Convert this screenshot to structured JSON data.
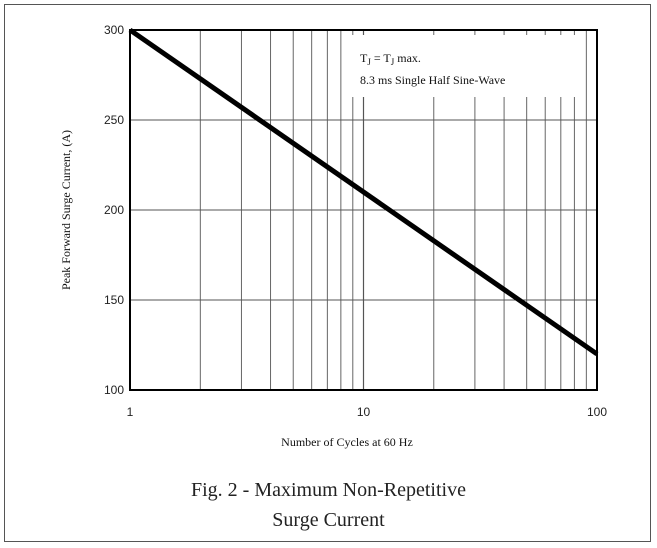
{
  "chart_data": {
    "type": "line",
    "title": "",
    "xlabel": "Number of Cycles at 60 Hz",
    "ylabel": "Peak Forward Surge Current, (A)",
    "x_scale": "log",
    "xlim": [
      1,
      100
    ],
    "ylim": [
      100,
      300
    ],
    "x_ticks": [
      1,
      10,
      100
    ],
    "x_tick_labels": [
      "1",
      "10",
      "100"
    ],
    "y_ticks": [
      100,
      150,
      200,
      250,
      300
    ],
    "y_tick_labels": [
      "100",
      "150",
      "200",
      "250",
      "300"
    ],
    "grid": true,
    "series": [
      {
        "x": [
          1,
          100
        ],
        "y": [
          300,
          120
        ]
      }
    ],
    "annotations": {
      "line1": {
        "t": "T",
        "sub1": "J",
        "eq": " = T",
        "sub2": "J",
        "rest": " max."
      },
      "line2": "8.3 ms Single Half Sine-Wave"
    },
    "colors": {
      "line": "#000000",
      "grid": "#555555",
      "axis": "#000000"
    }
  },
  "caption": {
    "line1": "Fig. 2 - Maximum Non-Repetitive",
    "line2": "Surge Current"
  }
}
